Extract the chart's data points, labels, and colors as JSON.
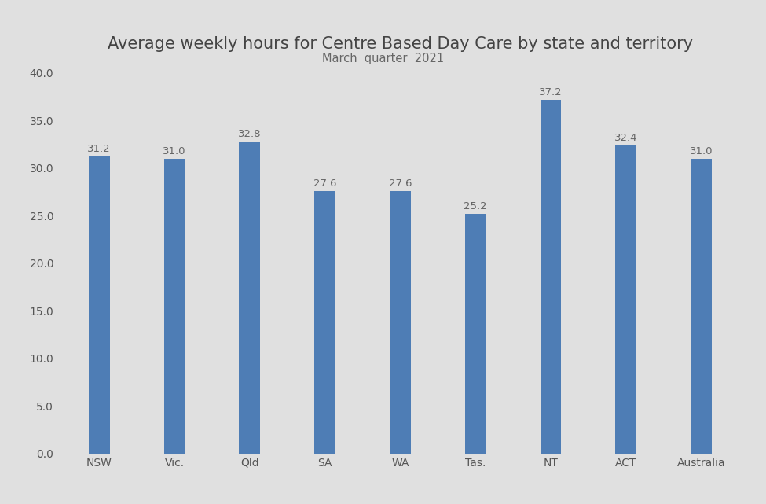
{
  "title": "Average weekly hours for Centre Based Day Care by state and territory",
  "subtitle": "March  quarter  2021",
  "categories": [
    "NSW",
    "Vic.",
    "Qld",
    "SA",
    "WA",
    "Tas.",
    "NT",
    "ACT",
    "Australia"
  ],
  "values": [
    31.2,
    31.0,
    32.8,
    27.6,
    27.6,
    25.2,
    37.2,
    32.4,
    31.0
  ],
  "bar_color": "#4e7db5",
  "background_color": "#e0e0e0",
  "ylim": [
    0,
    40.0
  ],
  "yticks": [
    0.0,
    5.0,
    10.0,
    15.0,
    20.0,
    25.0,
    30.0,
    35.0,
    40.0
  ],
  "title_fontsize": 15,
  "subtitle_fontsize": 10.5,
  "tick_fontsize": 10,
  "value_label_fontsize": 9.5
}
